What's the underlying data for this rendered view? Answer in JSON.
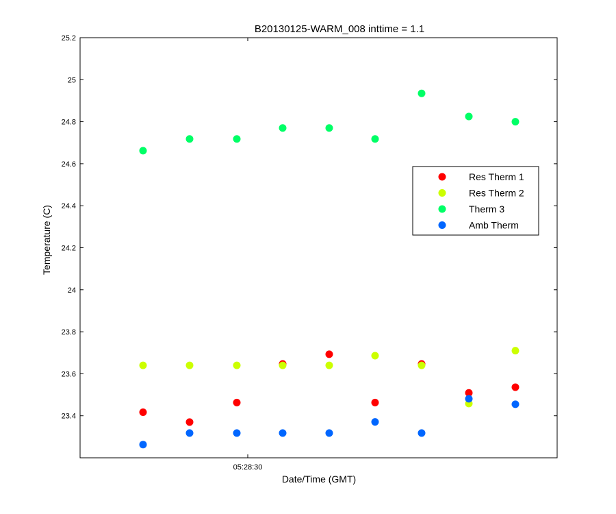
{
  "chart_data": {
    "type": "scatter",
    "title": "B20130125-WARM_008 inttime = 1.1",
    "xlabel": "Date/Time (GMT)",
    "ylabel": "Temperature (C)",
    "ylim": [
      23.2,
      25.2
    ],
    "yticks": [
      "23.4",
      "23.6",
      "23.8",
      "24",
      "24.2",
      "24.4",
      "24.6",
      "24.8",
      "25",
      "25.2"
    ],
    "xtick_labels": [
      "05:28:30"
    ],
    "legend_position": "right",
    "grid": false,
    "series": [
      {
        "name": "Res Therm 1",
        "color": "#ff0000",
        "values": [
          23.417,
          23.37,
          23.463,
          23.647,
          23.693,
          23.463,
          23.647,
          23.509,
          23.536
        ]
      },
      {
        "name": "Res Therm 2",
        "color": "#ccff00",
        "values": [
          23.64,
          23.64,
          23.64,
          23.64,
          23.64,
          23.686,
          23.64,
          23.458,
          23.71
        ]
      },
      {
        "name": "Therm 3",
        "color": "#00ff66",
        "values": [
          24.662,
          24.718,
          24.718,
          24.77,
          24.77,
          24.718,
          24.935,
          24.825,
          24.8
        ]
      },
      {
        "name": "Amb Therm",
        "color": "#0066ff",
        "values": [
          23.263,
          23.318,
          23.318,
          23.318,
          23.318,
          23.371,
          23.318,
          23.481,
          23.455
        ]
      }
    ]
  }
}
